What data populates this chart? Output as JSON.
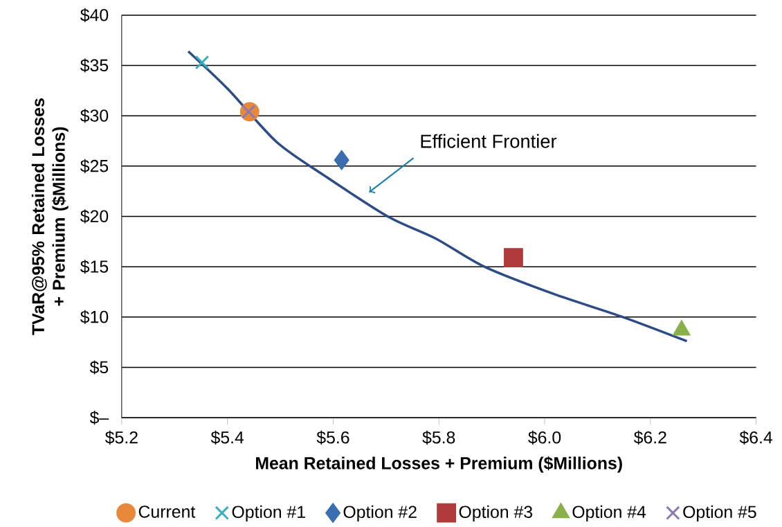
{
  "chart_data": {
    "type": "scatter",
    "xlabel": "Mean Retained Losses + Premium ($Millions)",
    "ylabel": "TVaR@95% Retained Losses + Premium ($Millions)",
    "xlim": [
      5.2,
      6.4
    ],
    "ylim": [
      0,
      40
    ],
    "xticks": [
      {
        "value": 5.2,
        "label": "$5.2"
      },
      {
        "value": 5.4,
        "label": "$5.4"
      },
      {
        "value": 5.6,
        "label": "$5.6"
      },
      {
        "value": 5.8,
        "label": "$5.8"
      },
      {
        "value": 6.0,
        "label": "$6.0"
      },
      {
        "value": 6.2,
        "label": "$6.2"
      },
      {
        "value": 6.4,
        "label": "$6.4"
      }
    ],
    "yticks": [
      {
        "value": 0,
        "label": "$–"
      },
      {
        "value": 5,
        "label": "$5"
      },
      {
        "value": 10,
        "label": "$10"
      },
      {
        "value": 15,
        "label": "$15"
      },
      {
        "value": 20,
        "label": "$20"
      },
      {
        "value": 25,
        "label": "$25"
      },
      {
        "value": 30,
        "label": "$30"
      },
      {
        "value": 35,
        "label": "$35"
      },
      {
        "value": 40,
        "label": "$40"
      }
    ],
    "grid": "y",
    "legend": "bottom",
    "series": [
      {
        "type": "line",
        "color": "#2c4c86",
        "x": [
          5.326,
          5.402,
          5.493,
          5.585,
          5.703,
          5.794,
          5.886,
          6.017,
          6.148,
          6.269
        ],
        "values": [
          36.4,
          32.6,
          27.4,
          24.0,
          20.0,
          17.8,
          15.0,
          12.3,
          10.0,
          7.6
        ]
      },
      {
        "name": "Current",
        "color": "#e8883a",
        "marker": "circle",
        "x": [
          5.442
        ],
        "values": [
          30.4
        ]
      },
      {
        "name": "Option #1",
        "color": "#3aaebe",
        "marker": "cross",
        "x": [
          5.352
        ],
        "values": [
          35.3
        ]
      },
      {
        "name": "Option #2",
        "color": "#3a6eb0",
        "marker": "diamond",
        "x": [
          5.616
        ],
        "values": [
          25.6
        ]
      },
      {
        "name": "Option #3",
        "color": "#b03a3a",
        "marker": "square",
        "x": [
          5.941
        ],
        "values": [
          15.9
        ]
      },
      {
        "name": "Option #4",
        "color": "#8ab04a",
        "marker": "triangle",
        "x": [
          6.259
        ],
        "values": [
          8.7
        ]
      },
      {
        "name": "Option #5",
        "color": "#8a7ab0",
        "marker": "cross",
        "x": [
          5.44
        ],
        "values": [
          30.4
        ]
      }
    ],
    "annotations": [
      "Efficient Frontier"
    ]
  }
}
